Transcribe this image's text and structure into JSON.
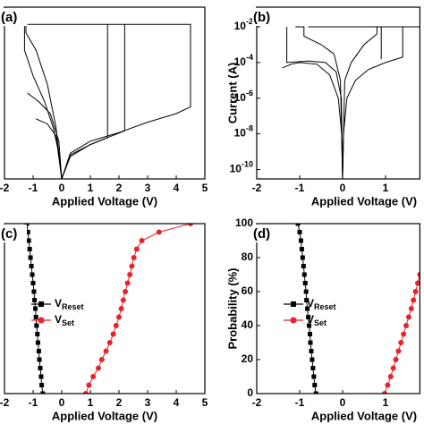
{
  "chart_data": [
    {
      "type": "line",
      "panel_label": "(a)",
      "xlabel": "Applied Voltage (V)",
      "xlim": [
        -2,
        5
      ],
      "xticks": [
        -2,
        -1,
        0,
        1,
        2,
        3,
        4,
        5
      ],
      "ylim": [
        0,
        1
      ],
      "series": [
        {
          "color": "#000000",
          "x": [
            -1.3,
            -1.3,
            -1.0,
            -0.6,
            -0.3,
            -0.1,
            0
          ],
          "values": [
            0.9,
            0.75,
            0.6,
            0.45,
            0.3,
            0.15,
            0
          ]
        },
        {
          "color": "#000000",
          "x": [
            -1.25,
            -1.25,
            -0.9,
            -0.5,
            -0.2,
            0
          ],
          "values": [
            0.9,
            0.85,
            0.75,
            0.55,
            0.3,
            0
          ]
        },
        {
          "color": "#000000",
          "x": [
            0,
            0.3,
            1,
            2,
            3,
            4,
            4.5,
            4.5,
            -1.2
          ],
          "values": [
            0,
            0.15,
            0.22,
            0.27,
            0.33,
            0.38,
            0.42,
            0.9,
            0.9
          ]
        },
        {
          "color": "#000000",
          "x": [
            0,
            0.3,
            1,
            1.6,
            1.6
          ],
          "values": [
            0,
            0.14,
            0.2,
            0.24,
            0.9
          ]
        },
        {
          "color": "#000000",
          "x": [
            0,
            0.3,
            1,
            2.2,
            2.2
          ],
          "values": [
            0,
            0.13,
            0.2,
            0.28,
            0.9
          ]
        },
        {
          "color": "#000000",
          "x": [
            -1.2,
            -0.8,
            -0.4,
            -0.1,
            0
          ],
          "values": [
            0.5,
            0.45,
            0.38,
            0.22,
            0
          ]
        },
        {
          "color": "#000000",
          "x": [
            -0.9,
            -0.5,
            -0.2,
            0
          ],
          "values": [
            0.35,
            0.32,
            0.25,
            0
          ]
        }
      ]
    },
    {
      "type": "line",
      "panel_label": "(b)",
      "xlabel": "Applied Voltage (V)",
      "ylabel": "Current (A)",
      "xlim": [
        -2,
        1.8
      ],
      "xticks": [
        -2,
        -1,
        0,
        1
      ],
      "yscale": "log",
      "ylim": [
        3e-11,
        0.126
      ],
      "yticks": [
        {
          "value": 1e-10,
          "label": "10",
          "exponent": "-10"
        },
        {
          "value": 1e-08,
          "label": "10",
          "exponent": "-8"
        },
        {
          "value": 1e-06,
          "label": "10",
          "exponent": "-6"
        },
        {
          "value": 0.0001,
          "label": "10",
          "exponent": "-4"
        },
        {
          "value": 0.01,
          "label": "10",
          "exponent": "-2"
        }
      ],
      "series": [
        {
          "color": "#000000",
          "x": [
            -1.4,
            -1.2,
            -1,
            -0.6,
            -0.3,
            -0.1,
            -0.02,
            0
          ],
          "values": [
            5e-05,
            8e-05,
            0.0001,
            8e-05,
            2e-05,
            1e-06,
            1e-08,
            3e-11
          ]
        },
        {
          "color": "#000000",
          "x": [
            0,
            0.02,
            0.1,
            0.3,
            0.6,
            1,
            1.4,
            1.4,
            -0.8
          ],
          "values": [
            3e-11,
            1e-08,
            1e-06,
            1e-05,
            4e-05,
            0.0001,
            0.0002,
            0.01,
            0.01
          ]
        },
        {
          "color": "#000000",
          "x": [
            -1.3,
            -1.3,
            -0.8,
            -0.4,
            -0.15,
            -0.03,
            0
          ],
          "values": [
            0.01,
            0.0001,
            0.00012,
            0.0001,
            3e-05,
            1e-06,
            3e-11
          ]
        },
        {
          "color": "#000000",
          "x": [
            -1.1,
            -0.9,
            -0.9,
            -0.5,
            -0.2,
            -0.05,
            0
          ],
          "values": [
            0.01,
            0.01,
            0.003,
            0.001,
            0.0003,
            1e-05,
            3e-11
          ]
        },
        {
          "color": "#000000",
          "x": [
            0,
            0.05,
            0.2,
            0.5,
            0.8,
            0.8
          ],
          "values": [
            3e-11,
            1e-05,
            0.0001,
            0.001,
            0.004,
            0.01
          ]
        },
        {
          "color": "#000000",
          "x": [
            0.9,
            0.9,
            1.8
          ],
          "values": [
            0.00015,
            0.01,
            0.01
          ]
        }
      ]
    },
    {
      "type": "line",
      "markers": true,
      "panel_label": "(c)",
      "xlabel": "Applied Voltage (V)",
      "legend": "center left",
      "xlim": [
        -2,
        5
      ],
      "xticks": [
        -2,
        -1,
        0,
        1,
        2,
        3,
        4,
        5
      ],
      "ylim": [
        0,
        100
      ],
      "series": [
        {
          "name": "V",
          "name_sub": "Reset",
          "color": "#000000",
          "marker": "square",
          "x": [
            -0.66,
            -0.7,
            -0.72,
            -0.75,
            -0.78,
            -0.8,
            -0.83,
            -0.85,
            -0.88,
            -0.9,
            -0.92,
            -0.95,
            -0.97,
            -1.0,
            -1.03,
            -1.06,
            -1.09,
            -1.12,
            -1.15,
            -1.18,
            -1.22
          ],
          "values": [
            0,
            5,
            10,
            15,
            20,
            25,
            30,
            35,
            40,
            45,
            50,
            55,
            60,
            65,
            70,
            75,
            80,
            85,
            90,
            95,
            100
          ]
        },
        {
          "name": "V",
          "name_sub": "Set",
          "color": "#e8232a",
          "marker": "circle",
          "x": [
            0.84,
            0.95,
            1.1,
            1.28,
            1.4,
            1.55,
            1.68,
            1.8,
            1.9,
            2.0,
            2.08,
            2.15,
            2.22,
            2.3,
            2.38,
            2.45,
            2.52,
            2.62,
            2.8,
            3.4,
            4.5
          ],
          "values": [
            0,
            5,
            10,
            15,
            20,
            25,
            30,
            35,
            40,
            45,
            50,
            55,
            60,
            65,
            70,
            75,
            80,
            85,
            90,
            95,
            100
          ]
        }
      ]
    },
    {
      "type": "line",
      "markers": true,
      "panel_label": "(d)",
      "xlabel": "Applied Voltage (V)",
      "ylabel": "Probability (%)",
      "legend": "center left",
      "xlim": [
        -2,
        1.8
      ],
      "xticks": [
        -2,
        -1,
        0,
        1
      ],
      "ylim": [
        0,
        100
      ],
      "yticks": [
        0,
        20,
        40,
        60,
        80,
        100
      ],
      "series": [
        {
          "name": "V",
          "name_sub": "Reset",
          "color": "#000000",
          "marker": "square",
          "x": [
            -0.62,
            -0.65,
            -0.67,
            -0.69,
            -0.71,
            -0.73,
            -0.75,
            -0.76,
            -0.78,
            -0.8,
            -0.82,
            -0.84,
            -0.85,
            -0.87,
            -0.89,
            -0.91,
            -0.93,
            -0.95,
            -0.97,
            -1.0,
            -1.04
          ],
          "values": [
            0,
            5,
            10,
            15,
            20,
            25,
            30,
            35,
            40,
            45,
            50,
            55,
            60,
            65,
            70,
            75,
            80,
            85,
            90,
            95,
            100
          ]
        },
        {
          "name": "V",
          "name_sub": "Set",
          "color": "#e8232a",
          "marker": "circle",
          "x": [
            0.98,
            1.05,
            1.12,
            1.18,
            1.24,
            1.3,
            1.36,
            1.42,
            1.48,
            1.54,
            1.6,
            1.65,
            1.7,
            1.75,
            1.8
          ],
          "values": [
            0,
            5,
            10,
            15,
            20,
            25,
            30,
            35,
            40,
            45,
            50,
            55,
            60,
            65,
            70
          ]
        }
      ]
    }
  ]
}
